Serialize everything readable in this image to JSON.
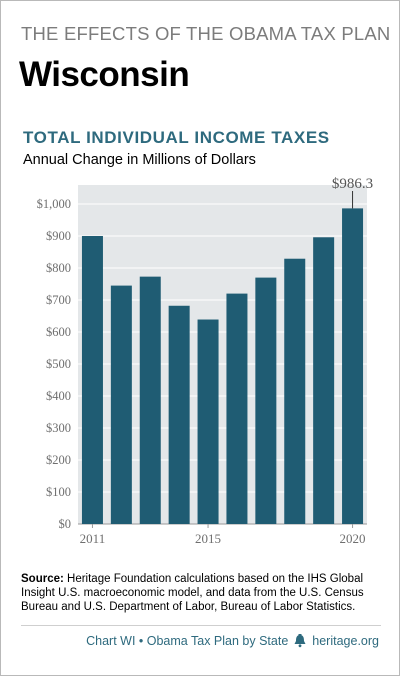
{
  "header": {
    "series_title": "THE EFFECTS OF THE OBAMA TAX PLAN",
    "state": "Wisconsin"
  },
  "chart_data": {
    "type": "bar",
    "title": "TOTAL INDIVIDUAL INCOME TAXES",
    "subtitle": "Annual Change in Millions of Dollars",
    "xlabel": "",
    "ylabel": "",
    "categories": [
      2011,
      2012,
      2013,
      2014,
      2015,
      2016,
      2017,
      2018,
      2019,
      2020
    ],
    "x_tick_labels": [
      "2011",
      "2015",
      "2020"
    ],
    "values": [
      900,
      745,
      773,
      682,
      639,
      720,
      770,
      829,
      896,
      986.3
    ],
    "ylim": [
      0,
      1000
    ],
    "y_ticks": [
      0,
      100,
      200,
      300,
      400,
      500,
      600,
      700,
      800,
      900,
      1000
    ],
    "y_tick_labels": [
      "$0",
      "$100",
      "$200",
      "$300",
      "$400",
      "$500",
      "$600",
      "$700",
      "$800",
      "$900",
      "$1,000"
    ],
    "grid": true,
    "bar_color": "#1f5c73",
    "annotation": {
      "category": 2020,
      "text": "$986.3"
    }
  },
  "footer": {
    "source_label": "Source:",
    "source_text": "Heritage Foundation calculations based on the IHS Global Insight U.S. macroeconomic model, and data from the U.S. Census Bureau and U.S. Department of Labor, Bureau of Labor Statistics.",
    "credit_text": "Chart WI • Obama Tax Plan by State",
    "site": "heritage.org",
    "credit_icon": "liberty-bell-icon"
  },
  "colors": {
    "accent": "#2e6a7e",
    "bar": "#1f5c73",
    "plot_bg": "#e4e7e9",
    "grid": "#ffffff"
  }
}
